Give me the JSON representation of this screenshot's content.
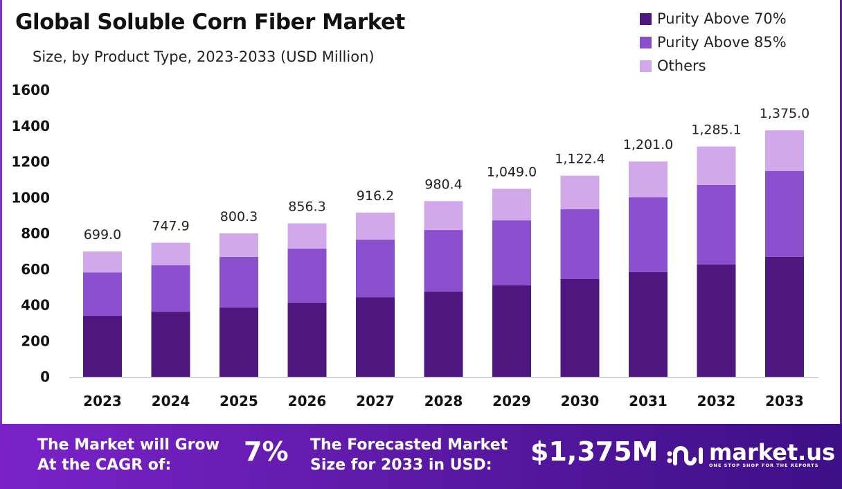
{
  "title": "Global Soluble Corn Fiber Market",
  "subtitle": "Size, by Product Type, 2023-2033 (USD Million)",
  "chart_data": {
    "type": "bar",
    "stacked": true,
    "categories": [
      "2023",
      "2024",
      "2025",
      "2026",
      "2027",
      "2028",
      "2029",
      "2030",
      "2031",
      "2032",
      "2033"
    ],
    "series": [
      {
        "name": "Purity Above 70%",
        "color": "#4e1780",
        "values": [
          340,
          363,
          387,
          414,
          444,
          475,
          510,
          545,
          584,
          626,
          669
        ]
      },
      {
        "name": "Purity Above 85%",
        "color": "#8a4fcc",
        "values": [
          242,
          259,
          282,
          301,
          321,
          344,
          363,
          390,
          417,
          445,
          479
        ]
      },
      {
        "name": "Others",
        "color": "#d1a8ea",
        "values": [
          117,
          126,
          131,
          141,
          151,
          161,
          176,
          187,
          200,
          214,
          227
        ]
      }
    ],
    "totals": [
      "699.0",
      "747.9",
      "800.3",
      "856.3",
      "916.2",
      "980.4",
      "1,049.0",
      "1,122.4",
      "1,201.0",
      "1,285.1",
      "1,375.0"
    ],
    "yticks": [
      "0",
      "200",
      "400",
      "600",
      "800",
      "1000",
      "1200",
      "1400",
      "1600"
    ],
    "ylim": [
      0,
      1600
    ],
    "grid": false,
    "legend": "top-right"
  },
  "footer": {
    "cagr_label_1": "The Market will Grow",
    "cagr_label_2": "At the CAGR of:",
    "cagr_value": "7%",
    "forecast_label_1": "The Forecasted Market",
    "forecast_label_2": "Size for 2033 in USD:",
    "forecast_value": "$1,375M",
    "logo_name": "market.us",
    "logo_tagline": "ONE STOP SHOP FOR THE REPORTS"
  }
}
